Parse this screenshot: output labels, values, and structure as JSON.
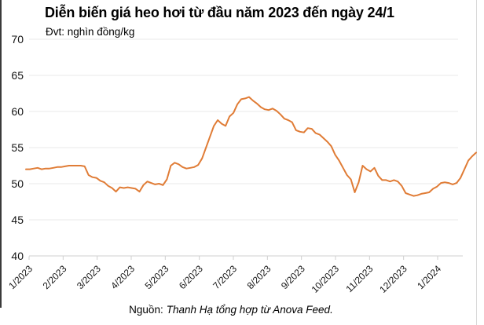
{
  "chart": {
    "title": "Diễn biến giá heo hơi từ đầu năm 2023 đến ngày 24/1",
    "subtitle": "Đvt: nghìn đồng/kg",
    "source_prefix": "Nguồn:",
    "source_text": "Thanh Hạ tổng hợp từ Anova Feed."
  },
  "chart_data": {
    "type": "line",
    "title": "Diễn biến giá heo hơi từ đầu năm 2023 đến ngày 24/1",
    "unit_label": "Đvt: nghìn đồng/kg",
    "source": "Nguồn: Thanh Hạ tổng hợp từ Anova Feed.",
    "xlabel": "",
    "ylabel": "nghìn đồng/kg",
    "ylim": [
      40,
      70
    ],
    "y_ticks": [
      40,
      45,
      50,
      55,
      60,
      65,
      70
    ],
    "x_tick_labels": [
      "1/2023",
      "2/2023",
      "3/2023",
      "4/2023",
      "5/2023",
      "6/2023",
      "7/2023",
      "8/2023",
      "9/2023",
      "10/2023",
      "11/2023",
      "12/2023",
      "1/2024"
    ],
    "grid": true,
    "legend_position": "none",
    "series": [
      {
        "name": "giá heo hơi",
        "values": [
          52.0,
          52.0,
          52.1,
          52.2,
          52.0,
          52.1,
          52.1,
          52.2,
          52.3,
          52.3,
          52.4,
          52.5,
          52.5,
          52.5,
          52.5,
          52.4,
          51.2,
          50.9,
          50.8,
          50.4,
          50.2,
          49.7,
          49.4,
          48.9,
          49.5,
          49.4,
          49.5,
          49.4,
          49.3,
          48.9,
          49.8,
          50.3,
          50.1,
          49.9,
          50.0,
          49.8,
          50.6,
          52.5,
          52.9,
          52.7,
          52.3,
          52.1,
          52.2,
          52.3,
          52.6,
          53.5,
          55.0,
          56.5,
          58.0,
          58.8,
          58.3,
          58.0,
          59.3,
          59.8,
          61.0,
          61.7,
          61.8,
          62.0,
          61.5,
          61.1,
          60.6,
          60.3,
          60.2,
          60.4,
          60.1,
          59.6,
          59.0,
          58.8,
          58.5,
          57.4,
          57.2,
          57.1,
          57.7,
          57.6,
          57.0,
          56.8,
          56.3,
          55.8,
          55.2,
          54.0,
          53.2,
          52.2,
          51.2,
          50.6,
          48.8,
          50.2,
          52.5,
          52.0,
          51.7,
          52.2,
          51.1,
          50.5,
          50.5,
          50.3,
          50.5,
          50.3,
          49.7,
          48.7,
          48.5,
          48.3,
          48.4,
          48.6,
          48.7,
          48.8,
          49.3,
          49.6,
          50.1,
          50.2,
          50.1,
          49.9,
          50.1,
          50.8,
          52.0,
          53.2,
          53.8,
          54.3
        ]
      }
    ],
    "colors": {
      "line": "#e07c36",
      "grid": "#e9e9e9",
      "axis": "#cfcfcf",
      "text": "#141414"
    }
  }
}
